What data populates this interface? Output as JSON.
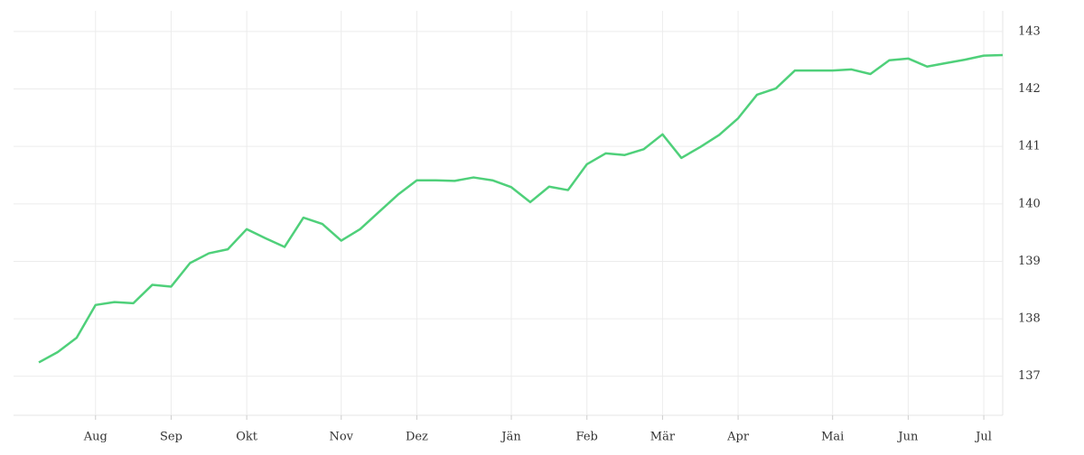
{
  "chart_data": {
    "type": "line",
    "categories": [
      null,
      null,
      null,
      "Aug",
      null,
      null,
      null,
      "Sep",
      null,
      null,
      null,
      "Okt",
      null,
      null,
      null,
      null,
      "Nov",
      null,
      null,
      null,
      "Dez",
      null,
      null,
      null,
      null,
      "Jän",
      null,
      null,
      null,
      "Feb",
      null,
      null,
      null,
      "Mär",
      null,
      null,
      null,
      "Apr",
      null,
      null,
      null,
      null,
      "Mai",
      null,
      null,
      null,
      "Jun",
      null,
      null,
      null,
      "Jul",
      null
    ],
    "series": [
      {
        "color": "#4fd07a",
        "values": [
          137.24,
          137.42,
          137.67,
          138.24,
          138.29,
          138.27,
          138.59,
          138.56,
          138.97,
          139.14,
          139.21,
          139.56,
          139.4,
          139.25,
          139.76,
          139.65,
          139.36,
          139.56,
          139.86,
          140.16,
          140.41,
          140.41,
          140.4,
          140.46,
          140.41,
          140.29,
          140.03,
          140.3,
          140.24,
          140.69,
          140.88,
          140.85,
          140.95,
          141.21,
          140.8,
          140.99,
          141.2,
          141.49,
          141.9,
          142.01,
          142.32,
          142.32,
          142.32,
          142.34,
          142.26,
          142.5,
          142.53,
          142.39,
          142.45,
          142.51,
          142.58,
          142.59
        ]
      }
    ],
    "ylim": [
      136.32,
      143.36
    ],
    "yticks": [
      137,
      138,
      139,
      140,
      141,
      142,
      143
    ],
    "grid": true
  }
}
